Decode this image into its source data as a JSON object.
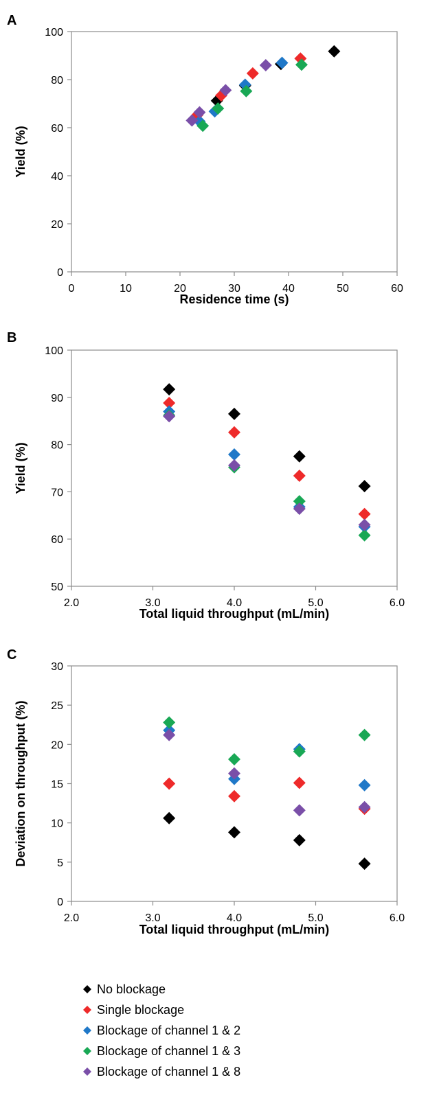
{
  "legend": {
    "items": [
      {
        "label": "No blockage",
        "color": "#000000"
      },
      {
        "label": "Single blockage",
        "color": "#ee2a2a"
      },
      {
        "label": "Blockage of channel 1 & 2",
        "color": "#1f78c8"
      },
      {
        "label": "Blockage of channel 1 & 3",
        "color": "#19a855"
      },
      {
        "label": "Blockage of channel 1 & 8",
        "color": "#7a4fa8"
      }
    ]
  },
  "chart_data": [
    {
      "panel": "A",
      "type": "scatter",
      "xlabel": "Residence time (s)",
      "ylabel": "Yield (%)",
      "xlim": [
        0,
        60
      ],
      "ylim": [
        0,
        100
      ],
      "xticks": [
        "0",
        "10",
        "20",
        "30",
        "40",
        "50",
        "60"
      ],
      "yticks": [
        "0",
        "20",
        "40",
        "60",
        "80",
        "100"
      ],
      "grid": false,
      "series": [
        {
          "name": "No blockage",
          "color": "#000000",
          "points": [
            [
              48.4,
              91.8
            ],
            [
              38.6,
              86.5
            ],
            [
              32.0,
              77.5
            ],
            [
              26.8,
              71.2
            ]
          ]
        },
        {
          "name": "Single blockage",
          "color": "#ee2a2a",
          "points": [
            [
              42.2,
              88.8
            ],
            [
              33.4,
              82.6
            ],
            [
              27.6,
              73.4
            ],
            [
              23.2,
              65.3
            ]
          ]
        },
        {
          "name": "Blockage of channel 1 & 2",
          "color": "#1f78c8",
          "points": [
            [
              38.8,
              87.0
            ],
            [
              32.0,
              77.9
            ],
            [
              26.4,
              66.8
            ],
            [
              23.6,
              62.6
            ]
          ]
        },
        {
          "name": "Blockage of channel 1 & 3",
          "color": "#19a855",
          "points": [
            [
              42.4,
              86.2
            ],
            [
              32.2,
              75.2
            ],
            [
              27.0,
              68.0
            ],
            [
              24.2,
              60.8
            ]
          ]
        },
        {
          "name": "Blockage of channel 1 & 8",
          "color": "#7a4fa8",
          "points": [
            [
              35.8,
              86.0
            ],
            [
              28.4,
              75.6
            ],
            [
              23.6,
              66.4
            ],
            [
              22.2,
              63.0
            ]
          ]
        }
      ]
    },
    {
      "panel": "B",
      "type": "scatter",
      "xlabel": "Total liquid throughput (mL/min)",
      "ylabel": "Yield (%)",
      "xlim": [
        2.0,
        6.0
      ],
      "ylim": [
        50,
        100
      ],
      "xticks": [
        "2.0",
        "3.0",
        "4.0",
        "5.0",
        "6.0"
      ],
      "yticks": [
        "50",
        "60",
        "70",
        "80",
        "90",
        "100"
      ],
      "grid": false,
      "series": [
        {
          "name": "No blockage",
          "color": "#000000",
          "points": [
            [
              3.2,
              91.7
            ],
            [
              4.0,
              86.5
            ],
            [
              4.8,
              77.5
            ],
            [
              5.6,
              71.2
            ]
          ]
        },
        {
          "name": "Single blockage",
          "color": "#ee2a2a",
          "points": [
            [
              3.2,
              88.8
            ],
            [
              4.0,
              82.6
            ],
            [
              4.8,
              73.4
            ],
            [
              5.6,
              65.3
            ]
          ]
        },
        {
          "name": "Blockage of channel 1 & 2",
          "color": "#1f78c8",
          "points": [
            [
              3.2,
              87.0
            ],
            [
              4.0,
              77.9
            ],
            [
              4.8,
              66.8
            ],
            [
              5.6,
              62.6
            ]
          ]
        },
        {
          "name": "Blockage of channel 1 & 3",
          "color": "#19a855",
          "points": [
            [
              3.2,
              86.2
            ],
            [
              4.0,
              75.2
            ],
            [
              4.8,
              68.0
            ],
            [
              5.6,
              60.8
            ]
          ]
        },
        {
          "name": "Blockage of channel 1 & 8",
          "color": "#7a4fa8",
          "points": [
            [
              3.2,
              86.0
            ],
            [
              4.0,
              75.6
            ],
            [
              4.8,
              66.4
            ],
            [
              5.6,
              63.0
            ]
          ]
        }
      ]
    },
    {
      "panel": "C",
      "type": "scatter",
      "xlabel": "Total liquid throughput (mL/min)",
      "ylabel": "Deviation on throughput (%)",
      "xlim": [
        2.0,
        6.0
      ],
      "ylim": [
        0,
        30
      ],
      "xticks": [
        "2.0",
        "3.0",
        "4.0",
        "5.0",
        "6.0"
      ],
      "yticks": [
        "0",
        "5",
        "10",
        "15",
        "20",
        "25",
        "30"
      ],
      "grid": false,
      "series": [
        {
          "name": "No blockage",
          "color": "#000000",
          "points": [
            [
              3.2,
              10.6
            ],
            [
              4.0,
              8.8
            ],
            [
              4.8,
              7.8
            ],
            [
              5.6,
              4.8
            ]
          ]
        },
        {
          "name": "Single blockage",
          "color": "#ee2a2a",
          "points": [
            [
              3.2,
              15.0
            ],
            [
              4.0,
              13.4
            ],
            [
              4.8,
              15.1
            ],
            [
              5.6,
              11.8
            ]
          ]
        },
        {
          "name": "Blockage of channel 1 & 2",
          "color": "#1f78c8",
          "points": [
            [
              3.2,
              21.8
            ],
            [
              4.0,
              15.6
            ],
            [
              4.8,
              19.4
            ],
            [
              5.6,
              14.8
            ]
          ]
        },
        {
          "name": "Blockage of channel 1 & 3",
          "color": "#19a855",
          "points": [
            [
              3.2,
              22.8
            ],
            [
              4.0,
              18.1
            ],
            [
              4.8,
              19.1
            ],
            [
              5.6,
              21.2
            ]
          ]
        },
        {
          "name": "Blockage of channel 1 & 8",
          "color": "#7a4fa8",
          "points": [
            [
              3.2,
              21.2
            ],
            [
              4.0,
              16.3
            ],
            [
              4.8,
              11.6
            ],
            [
              5.6,
              12.0
            ]
          ]
        }
      ]
    }
  ]
}
